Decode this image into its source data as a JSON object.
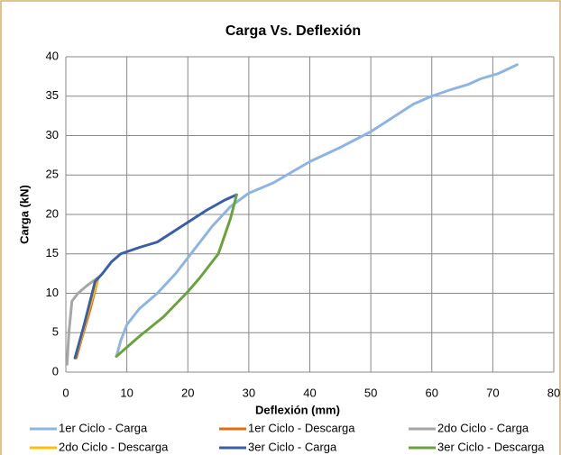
{
  "chart_data": {
    "type": "line",
    "title": "Carga Vs. Deflexión",
    "xlabel": "Deflexión (mm)",
    "ylabel": "Carga (kN)",
    "xlim": [
      0,
      80
    ],
    "xticks": [
      0,
      10,
      20,
      30,
      40,
      50,
      60,
      70,
      80
    ],
    "ylim": [
      0,
      40
    ],
    "yticks": [
      0,
      5,
      10,
      15,
      20,
      25,
      30,
      35,
      40
    ],
    "grid": true,
    "legend": "bottom",
    "series": [
      {
        "name": "1er Ciclo - Carga",
        "color": "#8eb4e3",
        "x": [
          8.3,
          9,
          10,
          12,
          15,
          18,
          21,
          24,
          27,
          30,
          34,
          40,
          45,
          50,
          54,
          57,
          60,
          63,
          66,
          68,
          71,
          74
        ],
        "values": [
          2,
          4,
          6,
          8,
          10,
          12.5,
          15.5,
          18.5,
          21,
          22.7,
          24,
          26.7,
          28.5,
          30.5,
          32.5,
          34,
          35,
          35.8,
          36.5,
          37.2,
          37.9,
          39
        ]
      },
      {
        "name": "1er Ciclo - Descarga",
        "color": "#e46c0a",
        "x": [
          5.3,
          4,
          2.5,
          1.7
        ],
        "values": [
          12,
          8,
          4,
          1.8
        ]
      },
      {
        "name": "2do Ciclo - Carga",
        "color": "#a6a6a6",
        "x": [
          0.2,
          0.5,
          1,
          2,
          3.5,
          5.3
        ],
        "values": [
          1,
          5,
          9,
          10,
          11,
          12
        ]
      },
      {
        "name": "2do Ciclo - Descarga",
        "color": "#ffc000",
        "x": [
          5.2,
          3.8,
          2.4,
          1.5
        ],
        "values": [
          11.8,
          8,
          4,
          1.8
        ]
      },
      {
        "name": "3er Ciclo - Carga",
        "color": "#3a5ea8",
        "x": [
          1.5,
          3,
          4.8,
          6,
          7.5,
          9,
          12,
          15,
          17,
          20,
          23,
          26,
          28
        ],
        "values": [
          1.8,
          6,
          11.5,
          12.5,
          14,
          15,
          15.8,
          16.5,
          17.5,
          19,
          20.5,
          21.8,
          22.5
        ]
      },
      {
        "name": "3er Ciclo - Descarga",
        "color": "#6aa33e",
        "x": [
          28,
          27,
          25,
          22,
          20,
          16,
          12,
          8.3
        ],
        "values": [
          22.5,
          19.5,
          15,
          12,
          10.2,
          7,
          4.5,
          2
        ]
      }
    ]
  }
}
